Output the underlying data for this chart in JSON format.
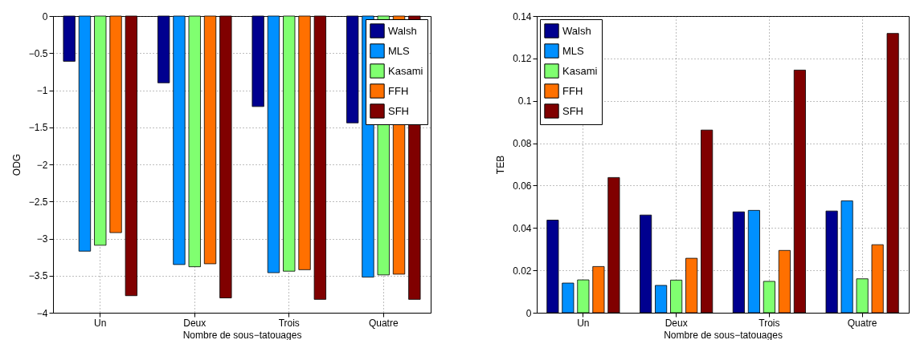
{
  "chart_data": [
    {
      "type": "bar",
      "xlabel": "Nombre de sous−tatouages",
      "ylabel": "ODG",
      "categories": [
        "Un",
        "Deux",
        "Trois",
        "Quatre"
      ],
      "series": [
        {
          "name": "Walsh",
          "color": "#00008f",
          "values": [
            -0.61,
            -0.9,
            -1.22,
            -1.44
          ]
        },
        {
          "name": "MLS",
          "color": "#0090ff",
          "values": [
            -3.17,
            -3.35,
            -3.46,
            -3.52
          ]
        },
        {
          "name": "Kasami",
          "color": "#80ff70",
          "values": [
            -3.09,
            -3.38,
            -3.44,
            -3.49
          ]
        },
        {
          "name": "FFH",
          "color": "#ff7000",
          "values": [
            -2.92,
            -3.34,
            -3.42,
            -3.48
          ]
        },
        {
          "name": "SFH",
          "color": "#800000",
          "values": [
            -3.77,
            -3.8,
            -3.82,
            -3.82
          ]
        }
      ],
      "ylim": [
        -4,
        0
      ],
      "yticks": [
        {
          "value": -4,
          "label": "−4"
        },
        {
          "value": -3.5,
          "label": "−3.5"
        },
        {
          "value": -3,
          "label": "−3"
        },
        {
          "value": -2.5,
          "label": "−2.5"
        },
        {
          "value": -2,
          "label": "−2"
        },
        {
          "value": -1.5,
          "label": "−1.5"
        },
        {
          "value": -1,
          "label": "−1"
        },
        {
          "value": -0.5,
          "label": "−0.5"
        },
        0
      ],
      "grid": true,
      "legend": "top right"
    },
    {
      "type": "bar",
      "xlabel": "Nombre de sous−tatouages",
      "ylabel": "TEB",
      "categories": [
        "Un",
        "Deux",
        "Trois",
        "Quatre"
      ],
      "series": [
        {
          "name": "Walsh",
          "color": "#00008f",
          "values": [
            0.0437,
            0.0461,
            0.0476,
            0.048
          ]
        },
        {
          "name": "MLS",
          "color": "#0090ff",
          "values": [
            0.014,
            0.0129,
            0.0483,
            0.0528
          ]
        },
        {
          "name": "Kasami",
          "color": "#80ff70",
          "values": [
            0.0155,
            0.0154,
            0.0148,
            0.016
          ]
        },
        {
          "name": "FFH",
          "color": "#ff7000",
          "values": [
            0.0218,
            0.0257,
            0.0294,
            0.0321
          ]
        },
        {
          "name": "SFH",
          "color": "#800000",
          "values": [
            0.0638,
            0.0862,
            0.1145,
            0.1318
          ]
        }
      ],
      "ylim": [
        0,
        0.14
      ],
      "yticks": [
        0,
        0.02,
        0.04,
        0.06,
        0.08,
        0.1,
        0.12,
        0.14
      ],
      "grid": true,
      "legend": "top left"
    }
  ]
}
